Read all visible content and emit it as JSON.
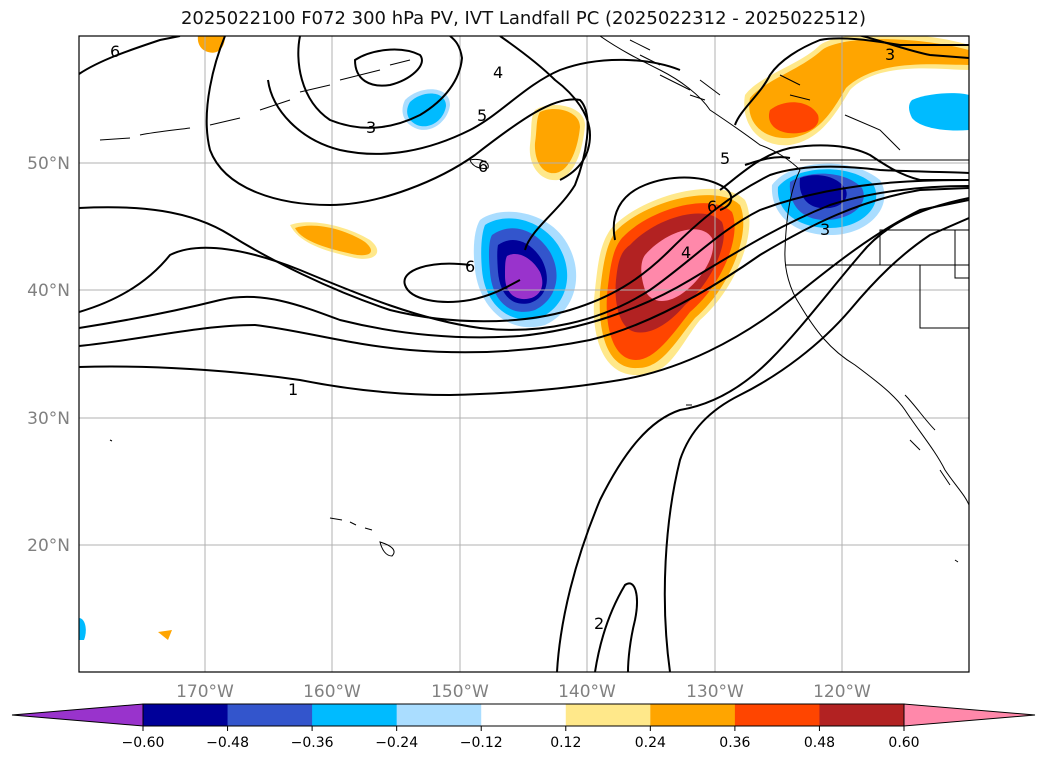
{
  "title": "2025022100 F072 300 hPa PV, IVT Landfall PC (2025022312 - 2025022512)",
  "lat_labels": [
    "50°N",
    "40°N",
    "30°N",
    "20°N"
  ],
  "lon_labels": [
    "170°W",
    "160°W",
    "150°W",
    "140°W",
    "130°W",
    "120°W"
  ],
  "colorbar": {
    "colors": [
      "#9933cc",
      "#000099",
      "#3355cc",
      "#00bbff",
      "#aaddff",
      "#ffffff",
      "#ffe88a",
      "#ffa500",
      "#ff4500",
      "#b22222",
      "#ff88aa"
    ],
    "tick_labels": [
      "−0.60",
      "−0.48",
      "−0.36",
      "−0.24",
      "−0.12",
      "0.12",
      "0.24",
      "0.36",
      "0.48",
      "0.60"
    ]
  },
  "contour_labels": [
    "6",
    "4",
    "5",
    "3",
    "6",
    "5",
    "6",
    "4",
    "6",
    "1",
    "2",
    "3",
    "3"
  ]
}
